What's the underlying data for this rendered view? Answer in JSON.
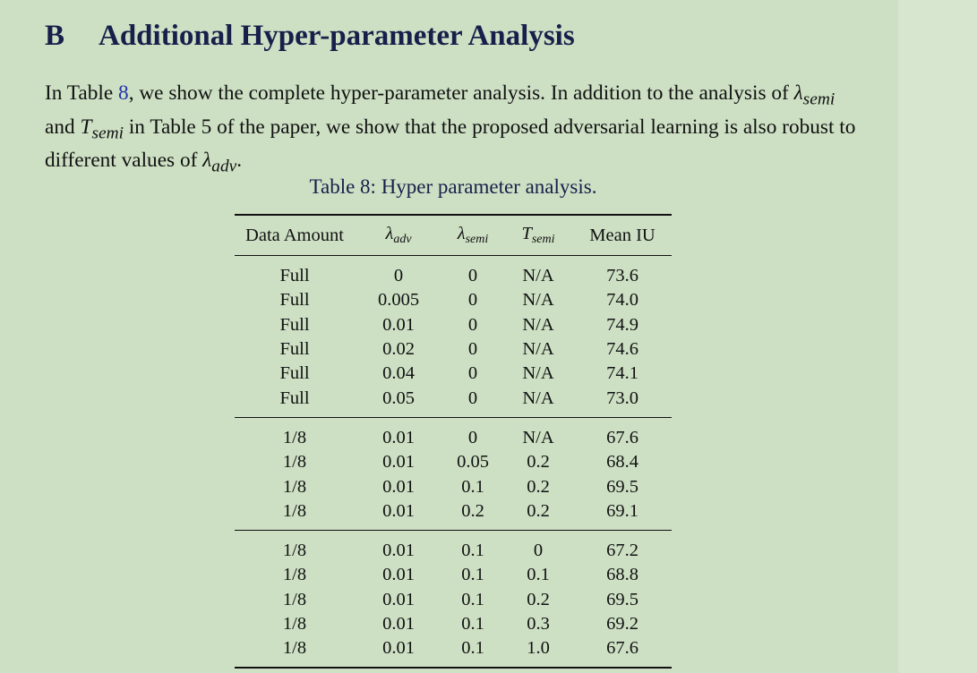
{
  "section": {
    "number": "B",
    "title": "Additional Hyper-parameter Analysis"
  },
  "paragraph": {
    "p1": "In Table ",
    "table_ref": "8",
    "p2": ", we show the complete hyper-parameter analysis. In addition to the analysis of ",
    "lambda_semi": {
      "base": "λ",
      "sub": "semi"
    },
    "p3": " and ",
    "t_semi": {
      "base": "T",
      "sub": "semi"
    },
    "p4": " in Table 5 of the paper, we show that the proposed adversarial learning is also robust to different values of ",
    "lambda_adv": {
      "base": "λ",
      "sub": "adv"
    },
    "p5": "."
  },
  "table": {
    "caption": "Table 8: Hyper parameter analysis.",
    "headers": {
      "data_amount": "Data Amount",
      "lambda_adv": {
        "base": "λ",
        "sub": "adv"
      },
      "lambda_semi": {
        "base": "λ",
        "sub": "semi"
      },
      "t_semi": {
        "base": "T",
        "sub": "semi"
      },
      "mean_iu": "Mean IU"
    },
    "groups": [
      [
        [
          "Full",
          "0",
          "0",
          "N/A",
          "73.6"
        ],
        [
          "Full",
          "0.005",
          "0",
          "N/A",
          "74.0"
        ],
        [
          "Full",
          "0.01",
          "0",
          "N/A",
          "74.9"
        ],
        [
          "Full",
          "0.02",
          "0",
          "N/A",
          "74.6"
        ],
        [
          "Full",
          "0.04",
          "0",
          "N/A",
          "74.1"
        ],
        [
          "Full",
          "0.05",
          "0",
          "N/A",
          "73.0"
        ]
      ],
      [
        [
          "1/8",
          "0.01",
          "0",
          "N/A",
          "67.6"
        ],
        [
          "1/8",
          "0.01",
          "0.05",
          "0.2",
          "68.4"
        ],
        [
          "1/8",
          "0.01",
          "0.1",
          "0.2",
          "69.5"
        ],
        [
          "1/8",
          "0.01",
          "0.2",
          "0.2",
          "69.1"
        ]
      ],
      [
        [
          "1/8",
          "0.01",
          "0.1",
          "0",
          "67.2"
        ],
        [
          "1/8",
          "0.01",
          "0.1",
          "0.1",
          "68.8"
        ],
        [
          "1/8",
          "0.01",
          "0.1",
          "0.2",
          "69.5"
        ],
        [
          "1/8",
          "0.01",
          "0.1",
          "0.3",
          "69.2"
        ],
        [
          "1/8",
          "0.01",
          "0.1",
          "1.0",
          "67.6"
        ]
      ]
    ]
  }
}
